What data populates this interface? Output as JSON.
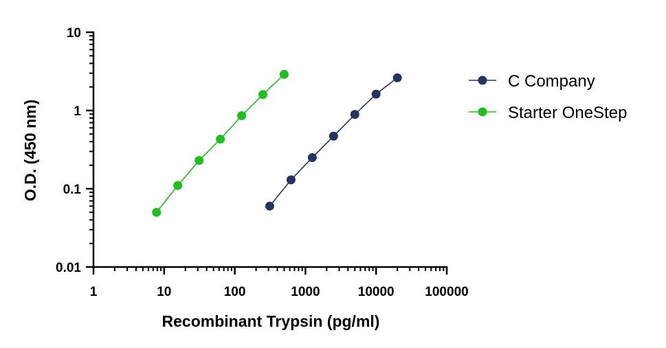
{
  "chart_data": {
    "type": "scatter",
    "xlabel": "Recombinant Trypsin  (pg/ml)",
    "ylabel": "O.D. (450 nm)",
    "xscale": "log",
    "yscale": "log",
    "xlim": [
      1,
      100000
    ],
    "ylim": [
      0.01,
      10
    ],
    "x_ticks": [
      "1",
      "10",
      "100",
      "1000",
      "10000",
      "100000"
    ],
    "y_ticks": [
      "0.01",
      "0.1",
      "1",
      "10"
    ],
    "grid": false,
    "legend_position": "right",
    "series": [
      {
        "name": "C Company",
        "color": "#25345e",
        "marker": "circle",
        "x": [
          312.5,
          625,
          1250,
          2500,
          5000,
          10000,
          20000
        ],
        "y": [
          0.06,
          0.13,
          0.25,
          0.47,
          0.89,
          1.62,
          2.62
        ]
      },
      {
        "name": "Starter OneStep",
        "color": "#1fbf1f",
        "marker": "circle",
        "x": [
          7.8,
          15.6,
          31.25,
          62.5,
          125,
          250,
          500
        ],
        "y": [
          0.05,
          0.11,
          0.23,
          0.43,
          0.86,
          1.6,
          2.9
        ]
      }
    ]
  }
}
